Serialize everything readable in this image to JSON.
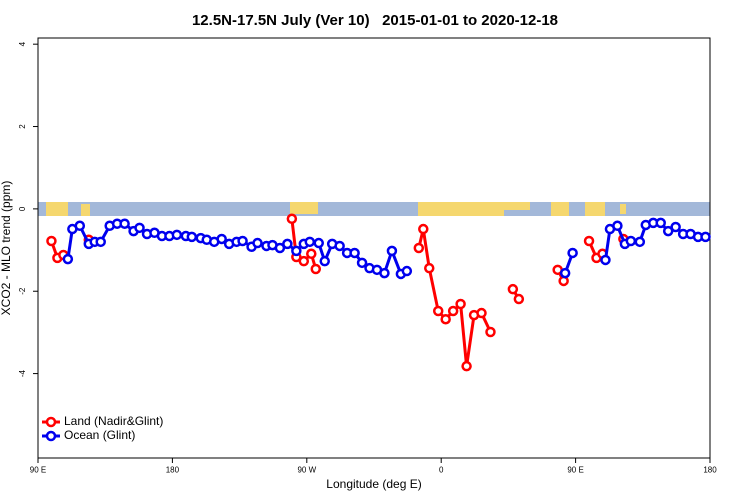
{
  "chart_data": {
    "type": "line",
    "title": "12.5N-17.5N July (Ver 10)   2015-01-01 to 2020-12-18",
    "x_label": "Longitude (deg E)",
    "y_label": "XCO2 - MLO trend (ppm)",
    "xlim": [
      90,
      540
    ],
    "ylim": [
      -6.05,
      4.15
    ],
    "xticks": [
      {
        "value": 90,
        "label": "90 E"
      },
      {
        "value": 180,
        "label": "180"
      },
      {
        "value": 270,
        "label": "90 W"
      },
      {
        "value": 360,
        "label": "0"
      },
      {
        "value": 450,
        "label": "90 E"
      },
      {
        "value": 540,
        "label": "180"
      }
    ],
    "yticks": [
      -4,
      -2,
      0,
      2,
      4
    ],
    "legend": "bottom-left",
    "series": [
      {
        "name": "Land (Nadir&Glint)",
        "color": "#ff0000",
        "x": [
          99,
          103,
          107,
          null,
          124,
          null,
          260,
          263,
          268,
          273,
          276,
          null,
          345,
          348,
          352,
          358,
          363,
          368,
          373,
          377,
          382,
          387,
          393,
          null,
          408,
          412,
          null,
          438,
          442,
          null,
          459,
          464,
          468,
          null,
          482
        ],
        "values": [
          -0.78,
          -1.19,
          -1.12,
          null,
          -0.75,
          null,
          -0.24,
          -1.17,
          -1.27,
          -1.09,
          -1.46,
          null,
          -0.95,
          -0.49,
          -1.44,
          -2.48,
          -2.68,
          -2.48,
          -2.31,
          -3.82,
          -2.58,
          -2.53,
          -2.99,
          null,
          -1.95,
          -2.19,
          null,
          -1.48,
          -1.75,
          null,
          -0.78,
          -1.19,
          -1.09,
          null,
          -0.73
        ]
      },
      {
        "name": "Ocean (Glint)",
        "color": "#0000ee",
        "x": [
          110,
          113,
          118,
          124,
          128,
          132,
          138,
          143,
          148,
          154,
          158,
          163,
          168,
          173,
          178,
          183,
          189,
          193,
          199,
          203,
          208,
          213,
          218,
          223,
          227,
          233,
          237,
          243,
          247,
          252,
          257,
          263,
          268,
          272,
          278,
          282,
          287,
          292,
          297,
          302,
          307,
          312,
          317,
          322,
          327,
          333,
          337,
          null,
          443,
          448,
          null,
          470,
          473,
          478,
          483,
          487,
          493,
          497,
          502,
          507,
          512,
          517,
          522,
          527,
          532,
          537
        ],
        "values": [
          -1.22,
          -0.49,
          -0.41,
          -0.85,
          -0.8,
          -0.8,
          -0.41,
          -0.36,
          -0.36,
          -0.54,
          -0.46,
          -0.61,
          -0.58,
          -0.66,
          -0.66,
          -0.63,
          -0.66,
          -0.68,
          -0.71,
          -0.75,
          -0.8,
          -0.73,
          -0.85,
          -0.8,
          -0.78,
          -0.92,
          -0.83,
          -0.9,
          -0.88,
          -0.95,
          -0.85,
          -1.02,
          -0.85,
          -0.8,
          -0.83,
          -1.27,
          -0.85,
          -0.9,
          -1.07,
          -1.07,
          -1.31,
          -1.44,
          -1.48,
          -1.56,
          -1.02,
          -1.58,
          -1.51,
          null,
          -1.56,
          -1.07,
          null,
          -1.24,
          -0.49,
          -0.41,
          -0.85,
          -0.78,
          -0.8,
          -0.39,
          -0.34,
          -0.34,
          -0.54,
          -0.44,
          -0.61,
          -0.61,
          -0.68,
          -0.68
        ]
      }
    ]
  }
}
